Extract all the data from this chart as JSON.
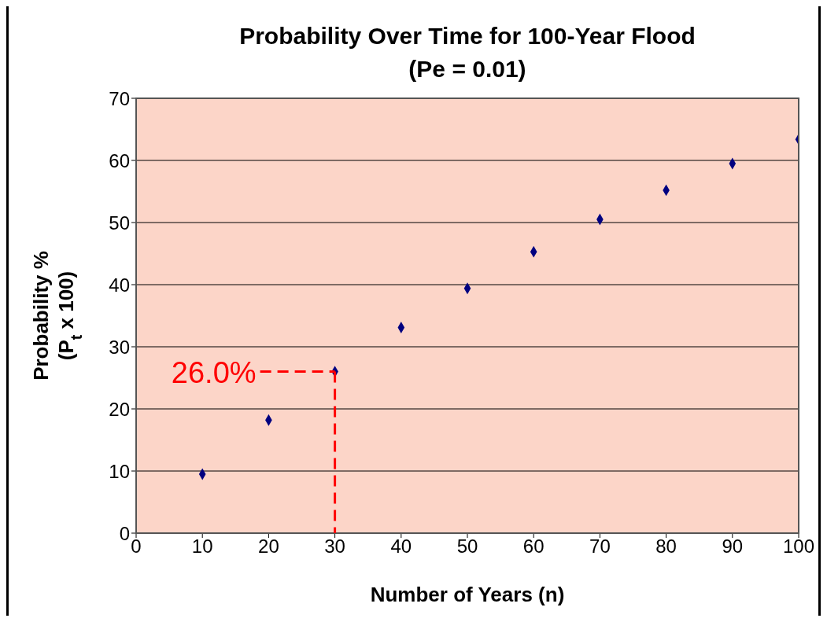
{
  "chart_data": {
    "type": "scatter",
    "title": "Probability Over Time for 100-Year Flood",
    "subtitle": "(Pe = 0.01)",
    "xlabel": "Number of Years (n)",
    "ylabel": "Probability %\n(P$_{t}$ x 100)",
    "x": [
      10,
      20,
      30,
      40,
      50,
      60,
      70,
      80,
      90,
      100
    ],
    "values": [
      9.5,
      18.2,
      26.0,
      33.1,
      39.4,
      45.3,
      50.5,
      55.2,
      59.5,
      63.4
    ],
    "color": "#000080",
    "marker": "diamond",
    "xlim": [
      0,
      100
    ],
    "xticks": [
      0,
      10,
      20,
      30,
      40,
      50,
      60,
      70,
      80,
      90,
      100
    ],
    "ylim": [
      0,
      70
    ],
    "yticks": [
      0,
      10,
      20,
      30,
      40,
      50,
      60,
      70
    ],
    "grid": "y",
    "annotations": [
      {
        "text": "26.0%",
        "x": 30,
        "y": 26
      }
    ]
  }
}
